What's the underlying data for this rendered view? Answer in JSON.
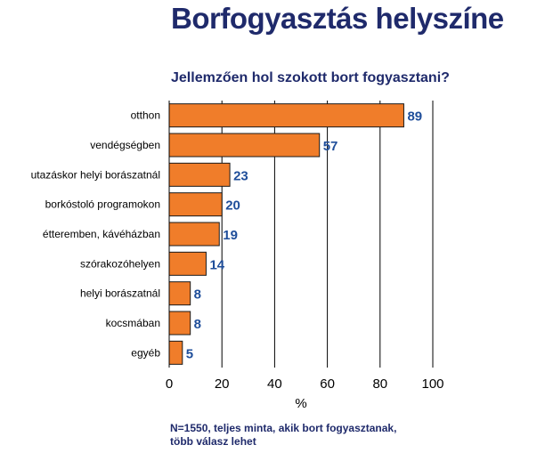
{
  "header": {
    "title": "Borfogyasztás helyszíne",
    "subtitle": "Jellemzően hol szokott bort fogyasztani?"
  },
  "footnote": {
    "line1": "N=1550, teljes minta, akik bort fogyasztanak,",
    "line2": "több válasz lehet"
  },
  "colors": {
    "bar_fill": "#f07d2a",
    "bar_stroke": "#1a1a1a",
    "value_label": "#1f4e9a",
    "title": "#1f2a6b"
  },
  "chart_data": {
    "type": "bar",
    "orientation": "horizontal",
    "categories": [
      "otthon",
      "vendégségben",
      "utazáskor helyi borászatnál",
      "borkóstoló programokon",
      "étteremben, kávéházban",
      "szórakozóhelyen",
      "helyi borászatnál",
      "kocsmában",
      "egyéb"
    ],
    "values": [
      89,
      57,
      23,
      20,
      19,
      14,
      8,
      8,
      5
    ],
    "title": "Jellemzően hol szokott bort fogyasztani?",
    "xlabel": "%",
    "ylabel": "",
    "xlim": [
      0,
      100
    ],
    "xticks": [
      0,
      20,
      40,
      60,
      80,
      100
    ],
    "grid": true,
    "legend": "none"
  }
}
